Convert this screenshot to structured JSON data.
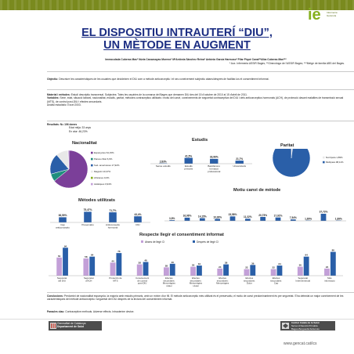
{
  "logo": {
    "text": "ie",
    "subtitle": "Infermeria Gerència"
  },
  "title": {
    "line1": "EL DISPOSITIU INTRAUTERÍ “DIU”,",
    "line2": "UN MÈTODE EN AUGMENT"
  },
  "authors": {
    "names": "Immaculada Cuberas Mas* Núria Cassasayas Moreno* MªAntònia Sánchez Reina* Antònia García Harmoso* Pilar Piqué Canal**Alba Cuberas Mas***",
    "affiliations": "* Aux. Infermeria ASSIR Bages; **Ginecòloga de l'ASSIR Bages; ***Metge de família ABS del Bages."
  },
  "objective": {
    "label": "Objectiu:",
    "text": "Descriure les característiques de les usuàries que decideixen el DIU com a mètode anticonceptiu i el seu coneixement subjectiu abans/després de facilitar-los el consentiment informat."
  },
  "methods": {
    "label": "Material i mètodes:",
    "text": "Estudi descriptiu transversal. Subjectes: Totes les usuàries de la comarca del Bages que demanen DIU des del 15 d'octubre de 2010 al 15 d'abril de 2011.",
    "variables_label": "Variables:",
    "variables_text": "Sexe, edat, situació laboral, nacionalitat, estudis, paritat, mètodes contraceptius utilitzats i motiu del canvi, coneixements de seguretat contraceptiva del DIU i dels anticonceptius hormonals (ACH), de protecció davant malalties de transmissió sexual (MTS), de control post-DIU i efectes secundaris.",
    "analysis": "Anàlisi estadístic: Excel 2003."
  },
  "results": {
    "label": "Resultats:",
    "n": "N= 106 dones",
    "mean_age": "Edat mitja: 33 anys",
    "work": "En atur: 46,23%"
  },
  "charts": {
    "nationality": {
      "title": "Nacionalitat",
      "chart_data": {
        "type": "pie",
        "title": "Nacionalitat",
        "categories": [
          "Espanyoles",
          "Països d'Est",
          "Sud-americanes",
          "Magrebí",
          "Africanes",
          "Asiàtiques"
        ],
        "values": [
          64.15,
          6.6,
          17.92,
          10.37,
          0.0,
          0.94
        ],
        "labels": [
          "Espanyoles 64,15%",
          "Països d'Est 6,6%",
          "Sud- americanes 17,92%",
          "Magrebí 10,37%",
          "Africanes 0,0%",
          "Asiàtiques 0,94%"
        ],
        "colors": [
          "#7b3f99",
          "#1f8f7d",
          "#2a5fa8",
          "#e8e8e8",
          "#86b01e",
          "#c3a0d8"
        ],
        "legend": "right"
      }
    },
    "studies": {
      "title": "Estudis",
      "chart_data": {
        "type": "bar",
        "title": "Estudis",
        "categories": [
          "Sense estudis",
          "Estudis primaris",
          "Batxillerat o formació professional",
          "Universitaris"
        ],
        "values": [
          2.83,
          41.5,
          33.96,
          21.7
        ],
        "labels": [
          "2,83%",
          "41,5%",
          "33,96%",
          "21,7%"
        ],
        "color": "#2a5fa8"
      }
    },
    "parity": {
      "title": "Paritat",
      "chart_data": {
        "type": "pie",
        "title": "Paritat",
        "categories": [
          "Nul·lípara",
          "Multípara"
        ],
        "values": [
          1.89,
          98.11
        ],
        "labels": [
          "Nul·lípara 1,89%",
          "Multípara 98,11%"
        ],
        "colors": [
          "#e8e8e8",
          "#2a5fa8"
        ],
        "legend": "right"
      }
    },
    "methods_used": {
      "title": "Mètodes utilitzats",
      "chart_data": {
        "type": "bar",
        "title": "Mètodes utilitzats",
        "categories": [
          "Cap anticonceptiu",
          "Preservatiu",
          "Anticonceptiu hormonal",
          "DIU"
        ],
        "values": [
          36.59,
          75.47,
          71.7,
          43.4
        ],
        "labels": [
          "36,59%",
          "75,47%",
          "71,7%",
          "43,4%"
        ],
        "color": "#2a5fa8"
      }
    },
    "change_reason": {
      "title": "Motiu canvi de mètode",
      "chart_data": {
        "type": "bar",
        "title": "Motiu canvi de mètode",
        "values": [
          3.8,
          16.98,
          14.15,
          10.38,
          23.58,
          11.32,
          20.75,
          17.92,
          7.54,
          1.89,
          37.73,
          1.89
        ],
        "labels": [
          "3,8%",
          "16,98%",
          "14,15%",
          "10,38%",
          "23,58%",
          "11,32%",
          "20,75%",
          "17,92%",
          "7,54%",
          "1,89%",
          "37,73%",
          "1,89%"
        ],
        "color": "#2a5fa8"
      }
    },
    "consent": {
      "title": "Respecte llegir el consentiment informat",
      "chart_data": {
        "type": "bar",
        "title": "Respecte llegir el consentiment informat",
        "categories": [
          "Seguretat del DIU",
          "Seguretat d'ACH",
          "Protecció de MTS",
          "Coneixement de control post-DIU",
          "Efectes secundaris: Menorràgies i dolor",
          "Efectes secundaris: Metrorràgies i dolor",
          "Efectes secundaris: Menorràgies",
          "Efectes secundaris: Dolor",
          "Efectes secundaris: Cap",
          "Seguretat Intermenstrual",
          "Més informació"
        ],
        "series": [
          {
            "name": "Abans de llegir CI",
            "values": [
              61,
              58,
              44,
              38,
              28,
              30,
              24,
              22,
              22,
              30,
              24
            ]
          },
          {
            "name": "Desprès de llegir CI",
            "values": [
              94,
              64,
              76,
              46,
              40,
              34,
              38,
              36,
              34,
              64,
              80
            ]
          }
        ],
        "colors": [
          "#c3a0d8",
          "#2a5fa8"
        ],
        "legend": "top"
      }
    }
  },
  "conclusions": {
    "label": "Conclusions:",
    "text": "Predomini de nacionalitat espanyola, la majoria amb estudis primaris, amb un mínim d'un fill. El mètode anticonceptiu més utilitzat és el preservatiu, el motiu de canvi predominantment és per seguretat. S'ha detectat un major coneixement de les característiques del mètode anticonceptiu i seguretat del DIU després de la lectura del consentiment informat."
  },
  "keywords": {
    "label": "Paraules clau:",
    "text": "Contraceptive methods. Adverse effects. Intrauterine device."
  },
  "footer": {
    "gencat_line1": "Generalitat de Catalunya",
    "gencat_line2": "Departament de Salut",
    "ics_line1": "Institut Català de la Salut",
    "ics_line2": "Servei d'Atenció Primària",
    "ics_line3": "Bages-Berguedà-Solsonès",
    "url": "www.gencat.cat/ics"
  }
}
